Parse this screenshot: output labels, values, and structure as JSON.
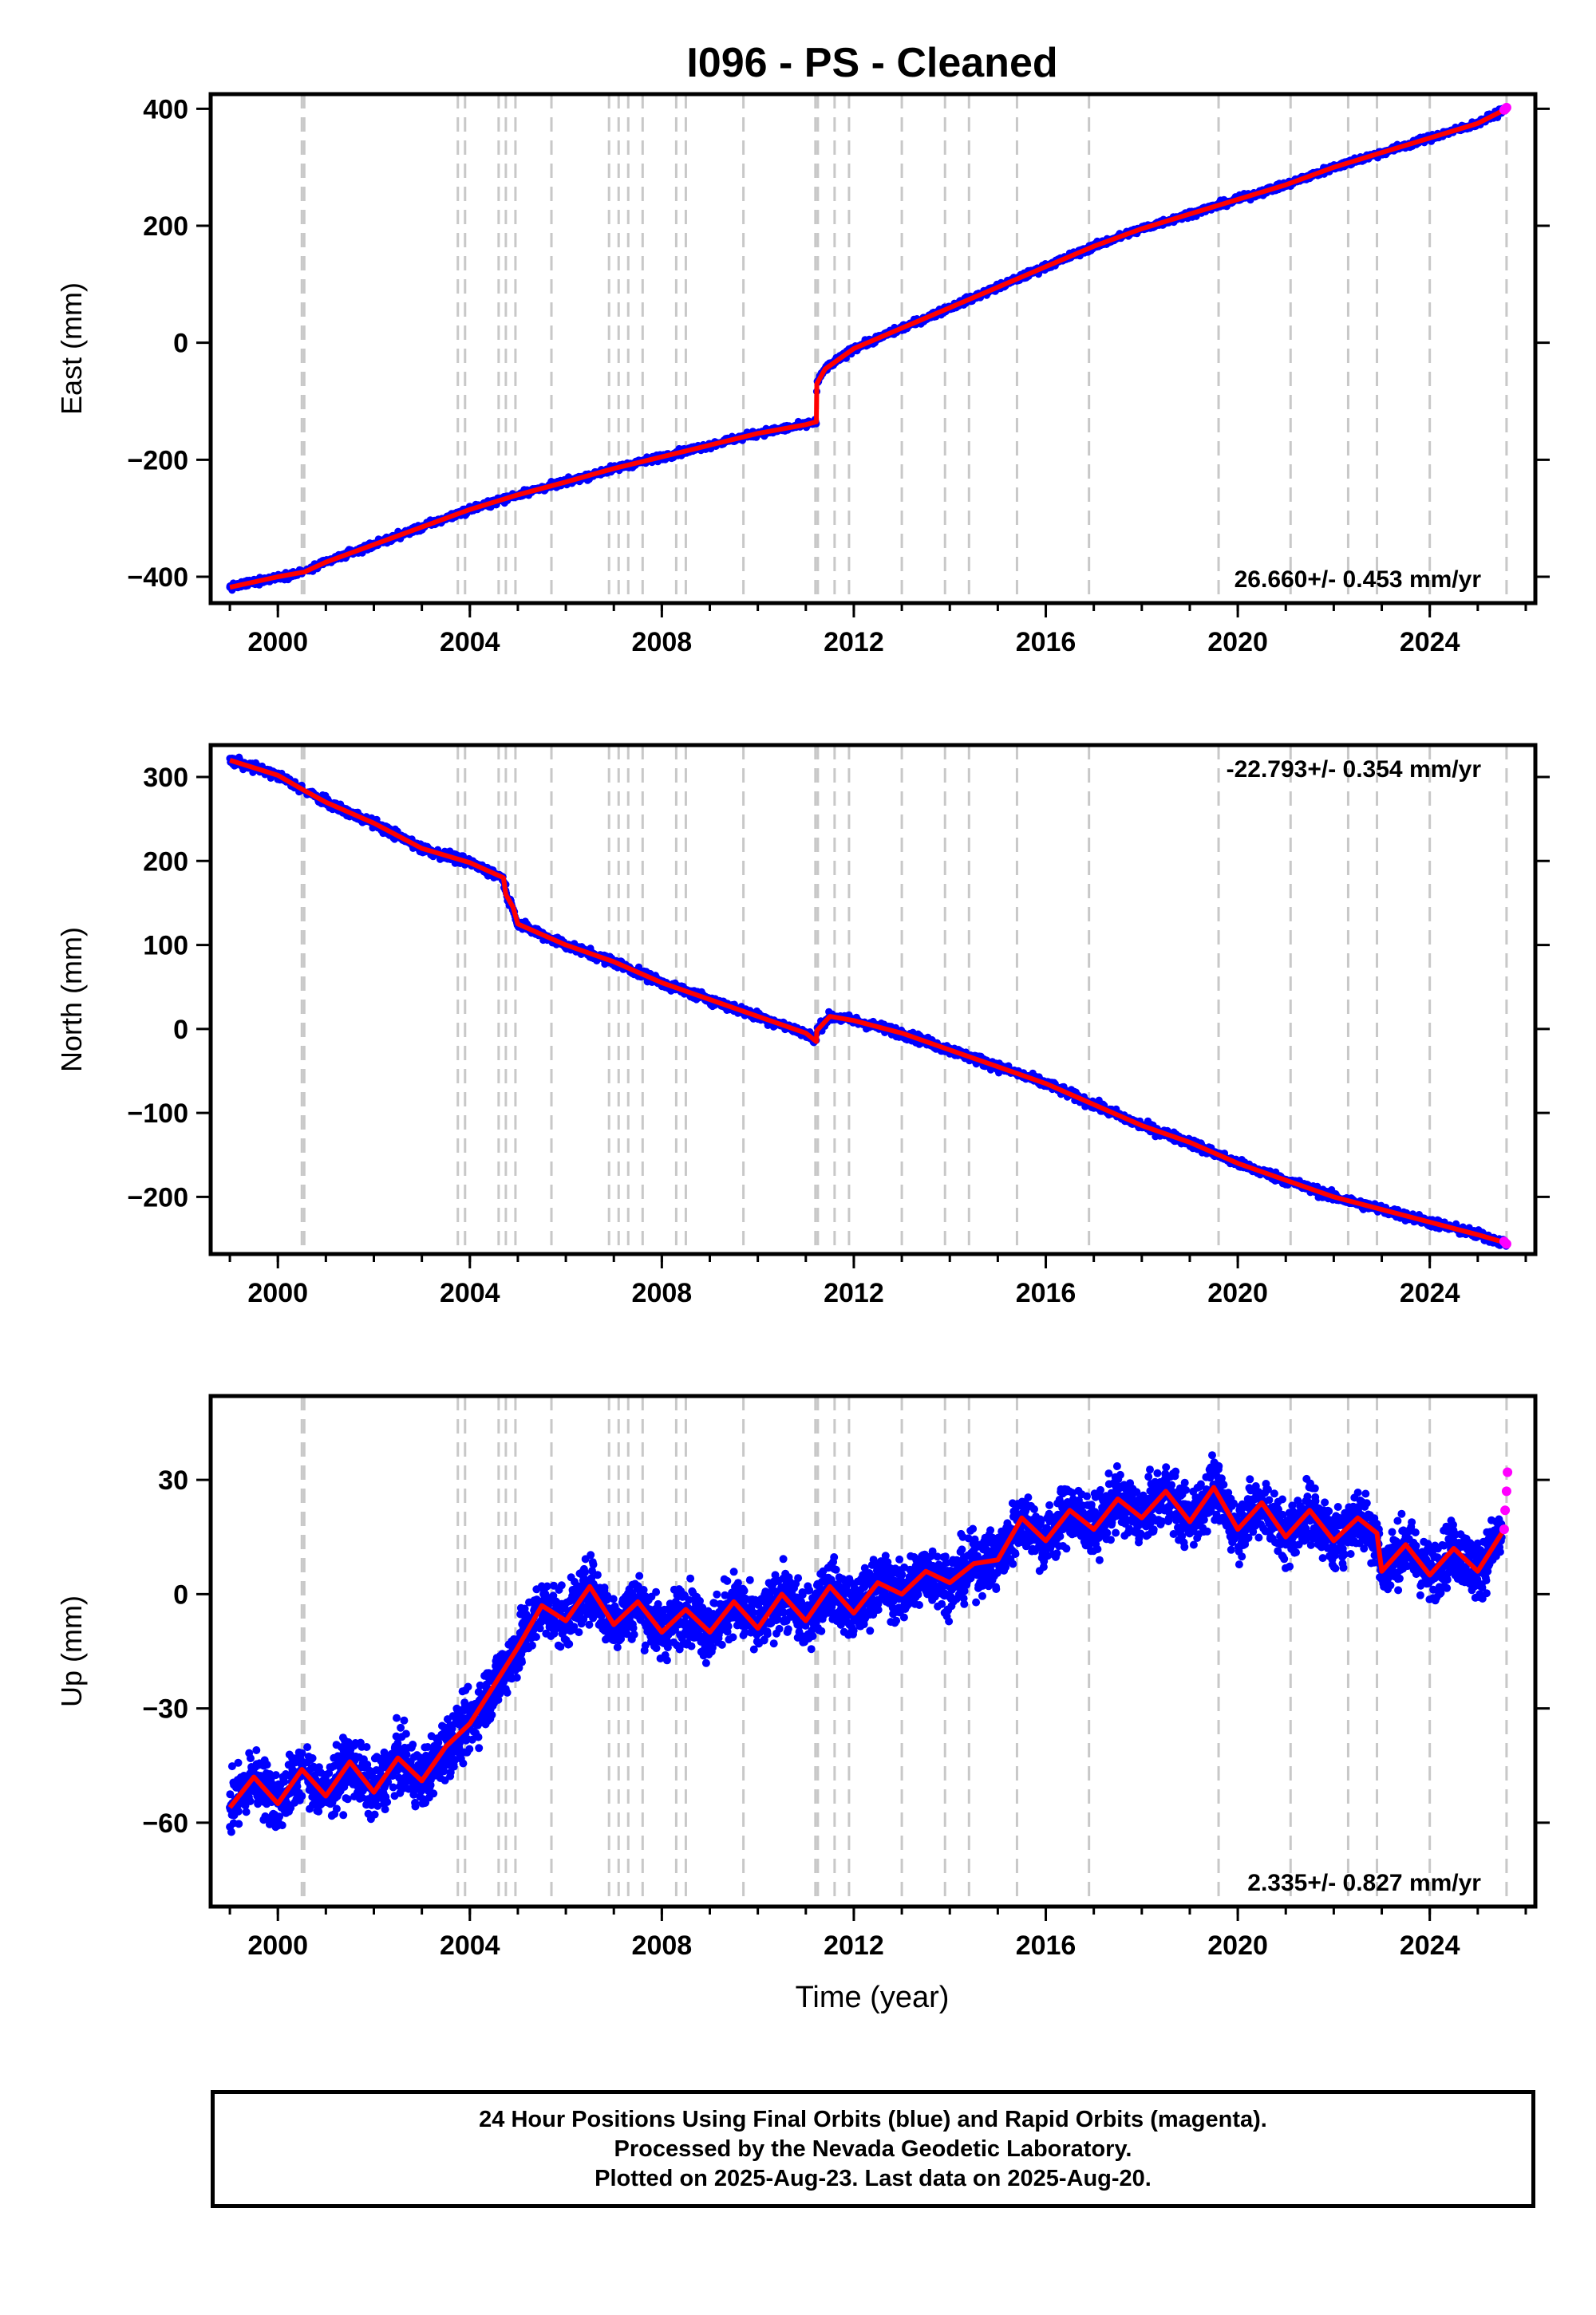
{
  "chart_title": "I096  - PS - Cleaned",
  "xlabel": "Time (year)",
  "colors": {
    "final_orbits": "#0000ff",
    "rapid_orbits": "#ff00ff",
    "model_fit": "#ff0000",
    "event_lines": "#c8c8c8"
  },
  "chart_data": [
    {
      "type": "scatter",
      "title": "I096  - PS - Cleaned",
      "ylabel": "East (mm)",
      "xlim": [
        1998.6,
        2026.2
      ],
      "ylim": [
        -445,
        425
      ],
      "x_ticks": [
        2000,
        2004,
        2008,
        2012,
        2016,
        2020,
        2024
      ],
      "y_ticks": [
        -400,
        -200,
        0,
        200,
        400
      ],
      "y_tick_labels": [
        "−400",
        "−200",
        "0",
        "200",
        "400"
      ],
      "rate_label": "26.660+/- 0.453 mm/yr",
      "rate_label_position": "bottom-right",
      "grid": false,
      "series": [
        {
          "name": "Final Orbits",
          "style": "points",
          "x": [
            1999.0,
            1999.5,
            2000.0,
            2000.5,
            2001.0,
            2002.0,
            2003.0,
            2004.0,
            2005.0,
            2006.0,
            2007.0,
            2008.0,
            2009.0,
            2010.0,
            2011.0,
            2011.2,
            2011.25,
            2011.5,
            2012.0,
            2013.0,
            2014.0,
            2015.0,
            2016.0,
            2017.0,
            2018.0,
            2019.0,
            2020.0,
            2021.0,
            2022.0,
            2023.0,
            2024.0,
            2025.0,
            2025.6
          ],
          "y": [
            -418,
            -410,
            -400,
            -390,
            -375,
            -345,
            -315,
            -285,
            -260,
            -238,
            -215,
            -195,
            -175,
            -155,
            -140,
            -135,
            -65,
            -35,
            -10,
            25,
            60,
            95,
            130,
            165,
            195,
            220,
            245,
            270,
            300,
            325,
            350,
            375,
            400
          ]
        },
        {
          "name": "Rapid Orbits",
          "style": "points",
          "x": [
            2025.55,
            2025.58,
            2025.6
          ],
          "y": [
            398,
            400,
            402
          ]
        },
        {
          "name": "Model Fit",
          "style": "line",
          "x": [
            1999.0,
            2000.0,
            2000.55,
            2001.0,
            2002.0,
            2003.0,
            2004.0,
            2005.0,
            2006.0,
            2007.0,
            2008.0,
            2009.0,
            2010.0,
            2011.0,
            2011.22,
            2011.23,
            2011.4,
            2012.0,
            2013.0,
            2014.0,
            2015.0,
            2016.0,
            2017.0,
            2018.0,
            2019.0,
            2020.0,
            2021.0,
            2022.0,
            2023.0,
            2024.0,
            2025.0,
            2025.6
          ],
          "y": [
            -418,
            -400,
            -392,
            -375,
            -345,
            -315,
            -285,
            -260,
            -238,
            -215,
            -195,
            -175,
            -155,
            -140,
            -135,
            -70,
            -45,
            -10,
            25,
            60,
            95,
            130,
            165,
            195,
            220,
            245,
            270,
            300,
            325,
            350,
            375,
            400
          ]
        }
      ]
    },
    {
      "type": "scatter",
      "ylabel": "North (mm)",
      "xlim": [
        1998.6,
        2026.2
      ],
      "ylim": [
        -268,
        338
      ],
      "x_ticks": [
        2000,
        2004,
        2008,
        2012,
        2016,
        2020,
        2024
      ],
      "y_ticks": [
        -200,
        -100,
        0,
        100,
        200,
        300
      ],
      "y_tick_labels": [
        "−200",
        "−100",
        "0",
        "100",
        "200",
        "300"
      ],
      "rate_label": "-22.793+/- 0.354 mm/yr",
      "rate_label_position": "top-right",
      "grid": false,
      "series": [
        {
          "name": "Final Orbits",
          "style": "points",
          "x": [
            1999.0,
            1999.5,
            2000.0,
            2000.5,
            2001.0,
            2002.0,
            2003.0,
            2004.0,
            2004.5,
            2004.75,
            2004.8,
            2005.0,
            2006.0,
            2007.0,
            2008.0,
            2009.0,
            2010.0,
            2011.0,
            2011.2,
            2011.3,
            2011.5,
            2012.0,
            2013.0,
            2014.0,
            2015.0,
            2016.0,
            2017.0,
            2018.0,
            2019.0,
            2020.0,
            2021.0,
            2022.0,
            2023.0,
            2024.0,
            2025.0,
            2025.6
          ],
          "y": [
            322,
            312,
            302,
            290,
            270,
            245,
            215,
            198,
            180,
            172,
            152,
            125,
            100,
            80,
            55,
            35,
            15,
            -5,
            -10,
            5,
            15,
            10,
            -5,
            -25,
            -45,
            -65,
            -90,
            -115,
            -135,
            -160,
            -180,
            -200,
            -215,
            -230,
            -245,
            -255
          ]
        },
        {
          "name": "Rapid Orbits",
          "style": "points",
          "x": [
            2025.55,
            2025.58,
            2025.6
          ],
          "y": [
            -253,
            -255,
            -256
          ]
        },
        {
          "name": "Model Fit",
          "style": "line",
          "x": [
            1999.0,
            2000.0,
            2000.55,
            2001.0,
            2002.0,
            2003.0,
            2004.0,
            2004.7,
            2004.75,
            2004.9,
            2005.0,
            2006.0,
            2007.0,
            2008.0,
            2009.0,
            2010.0,
            2011.0,
            2011.22,
            2011.23,
            2011.5,
            2012.0,
            2013.0,
            2014.0,
            2015.0,
            2016.0,
            2017.0,
            2018.0,
            2019.0,
            2020.0,
            2021.0,
            2022.0,
            2023.0,
            2024.0,
            2025.0,
            2025.6
          ],
          "y": [
            320,
            302,
            284,
            270,
            245,
            215,
            198,
            180,
            160,
            145,
            125,
            100,
            80,
            55,
            35,
            15,
            -5,
            -15,
            -2,
            15,
            10,
            -5,
            -25,
            -45,
            -65,
            -90,
            -115,
            -135,
            -160,
            -180,
            -200,
            -215,
            -230,
            -245,
            -255
          ]
        }
      ]
    },
    {
      "type": "scatter",
      "ylabel": "Up (mm)",
      "xlabel": "Time (year)",
      "xlim": [
        1998.6,
        2026.2
      ],
      "ylim": [
        -82,
        52
      ],
      "x_ticks": [
        2000,
        2004,
        2008,
        2012,
        2016,
        2020,
        2024
      ],
      "y_ticks": [
        -60,
        -30,
        0,
        30
      ],
      "y_tick_labels": [
        "−60",
        "−30",
        "0",
        "30"
      ],
      "rate_label": "2.335+/- 0.827 mm/yr",
      "rate_label_position": "bottom-right",
      "grid": false,
      "series": [
        {
          "name": "Final Orbits",
          "style": "points",
          "x": [
            1999.0,
            1999.5,
            2000.0,
            2000.5,
            2001.0,
            2001.5,
            2002.0,
            2002.5,
            2003.0,
            2003.5,
            2004.0,
            2004.5,
            2005.0,
            2005.5,
            2006.0,
            2006.5,
            2007.0,
            2007.5,
            2008.0,
            2008.5,
            2009.0,
            2009.5,
            2010.0,
            2010.5,
            2011.0,
            2011.5,
            2012.0,
            2012.5,
            2013.0,
            2013.5,
            2014.0,
            2014.5,
            2015.0,
            2015.5,
            2016.0,
            2016.5,
            2017.0,
            2017.5,
            2018.0,
            2018.5,
            2019.0,
            2019.5,
            2020.0,
            2020.5,
            2021.0,
            2021.5,
            2022.0,
            2022.5,
            2023.0,
            2023.5,
            2024.0,
            2024.5,
            2025.0,
            2025.5
          ],
          "y": [
            -56,
            -47,
            -55,
            -44,
            -53,
            -42,
            -52,
            -41,
            -48,
            -38,
            -32,
            -22,
            -12,
            -4,
            -6,
            2,
            -8,
            -2,
            -10,
            -3,
            -10,
            -2,
            -8,
            0,
            -6,
            3,
            -4,
            4,
            0,
            7,
            3,
            9,
            8,
            18,
            14,
            22,
            17,
            26,
            20,
            27,
            19,
            28,
            17,
            25,
            15,
            23,
            14,
            22,
            7,
            15,
            6,
            14,
            7,
            17
          ]
        },
        {
          "name": "Rapid Orbits",
          "style": "points",
          "x": [
            2025.55,
            2025.57,
            2025.6,
            2025.62
          ],
          "y": [
            17,
            22,
            27,
            32
          ]
        },
        {
          "name": "Model Fit",
          "style": "line",
          "x": [
            1999.0,
            1999.5,
            2000.0,
            2000.5,
            2001.0,
            2001.5,
            2002.0,
            2002.5,
            2003.0,
            2003.5,
            2004.0,
            2004.5,
            2005.0,
            2005.5,
            2006.0,
            2006.5,
            2007.0,
            2007.5,
            2008.0,
            2008.5,
            2009.0,
            2009.5,
            2010.0,
            2010.5,
            2011.0,
            2011.5,
            2012.0,
            2012.5,
            2013.0,
            2013.5,
            2014.0,
            2014.5,
            2015.0,
            2015.5,
            2016.0,
            2016.5,
            2017.0,
            2017.5,
            2018.0,
            2018.5,
            2019.0,
            2019.5,
            2020.0,
            2020.5,
            2021.0,
            2021.5,
            2022.0,
            2022.5,
            2022.9,
            2023.0,
            2023.5,
            2024.0,
            2024.5,
            2025.0,
            2025.6
          ],
          "y": [
            -56,
            -48,
            -55,
            -46,
            -53,
            -44,
            -52,
            -43,
            -49,
            -40,
            -34,
            -24,
            -14,
            -3,
            -7,
            2,
            -8,
            -2,
            -10,
            -4,
            -10,
            -2,
            -9,
            0,
            -7,
            2,
            -5,
            3,
            0,
            6,
            3,
            8,
            9,
            20,
            14,
            22,
            17,
            25,
            20,
            27,
            19,
            28,
            17,
            24,
            15,
            22,
            14,
            20,
            16,
            6,
            13,
            5,
            12,
            6,
            18
          ]
        }
      ]
    }
  ],
  "event_lines_x": [
    2000.5,
    2000.55,
    2003.75,
    2003.9,
    2004.6,
    2004.75,
    2004.95,
    2005.7,
    2006.9,
    2007.1,
    2007.3,
    2007.6,
    2008.3,
    2008.5,
    2009.7,
    2011.2,
    2011.25,
    2011.6,
    2011.9,
    2013.0,
    2013.9,
    2014.4,
    2015.4,
    2016.9,
    2019.6,
    2021.1,
    2022.3,
    2022.9,
    2024.0,
    2025.6
  ],
  "footer": {
    "line1": "24 Hour Positions Using Final Orbits (blue) and Rapid Orbits (magenta).",
    "line2": "Processed by the Nevada Geodetic Laboratory.",
    "line3": "Plotted on 2025-Aug-23. Last data on 2025-Aug-20."
  }
}
